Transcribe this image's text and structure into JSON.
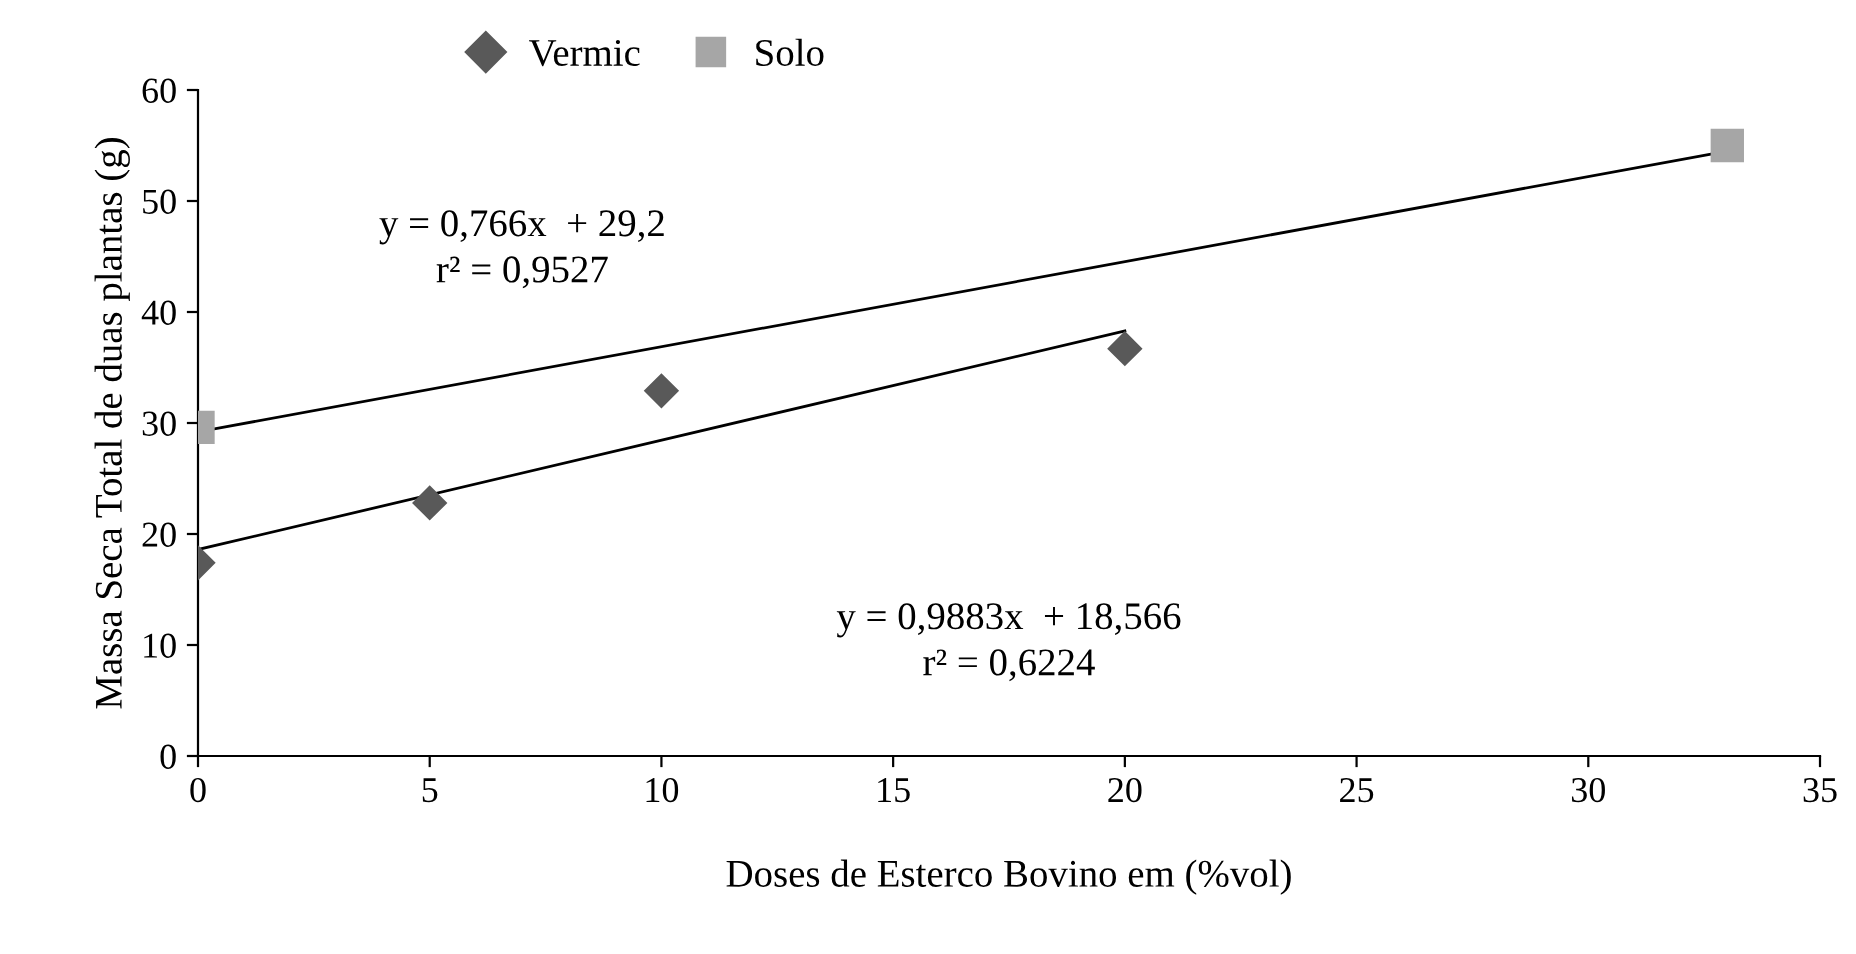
{
  "chart_data": {
    "type": "scatter",
    "xlabel": "Doses de Esterco Bovino em (%vol)",
    "ylabel": "Massa Seca Total de duas plantas (g)",
    "xlim": [
      0,
      35
    ],
    "xticks": [
      0,
      5,
      10,
      15,
      20,
      25,
      30,
      35
    ],
    "ylim": [
      0,
      60
    ],
    "yticks": [
      0,
      10,
      20,
      30,
      40,
      50,
      60
    ],
    "grid": false,
    "legend": "top",
    "series": [
      {
        "name": "Vermic",
        "marker": "diamond",
        "color": "#595959",
        "x": [
          0,
          5,
          10,
          20
        ],
        "values": [
          17.4,
          22.8,
          32.9,
          36.7
        ]
      },
      {
        "name": "Solo",
        "marker": "square",
        "color": "#a6a6a6",
        "x": [
          0,
          33
        ],
        "values": [
          29.6,
          55.0
        ]
      },
      {
        "type": "line",
        "marker": "none",
        "line_style": "solid",
        "color": "#000000",
        "x": [
          0,
          20
        ],
        "values": [
          18.6,
          38.3
        ]
      },
      {
        "type": "line",
        "marker": "none",
        "line_style": "solid",
        "color": "#000000",
        "x": [
          0,
          33
        ],
        "values": [
          29.2,
          54.5
        ]
      }
    ],
    "annotations": [
      "y = 0,766x  + 29,2\nr² = 0,9527",
      "y = 0,9883x  + 18,566\nr² = 0,6224"
    ]
  }
}
